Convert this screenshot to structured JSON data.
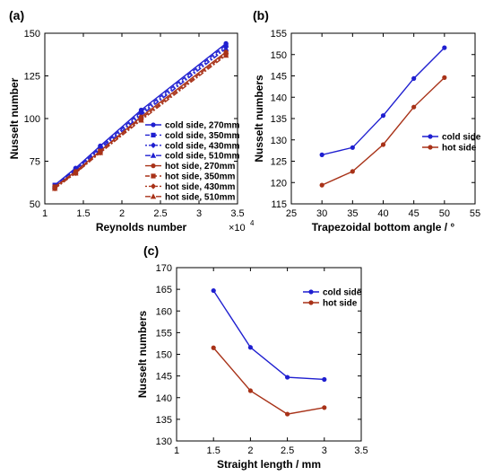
{
  "chart_data": [
    {
      "panel_label": "(a)",
      "type": "line",
      "xlabel": "Reynolds number",
      "ylabel": "Nusselt number",
      "x_multiplier": "×10",
      "x_multiplier_exp": "4",
      "xlim": [
        1,
        3.5
      ],
      "ylim": [
        50,
        150
      ],
      "xticks": [
        1,
        1.5,
        2,
        2.5,
        3,
        3.5
      ],
      "yticks": [
        50,
        75,
        100,
        125,
        150
      ],
      "legend_position": "bottom-right",
      "series": [
        {
          "name": "cold side, 270mm",
          "color": "#1f1fd0",
          "marker": "circle",
          "dash": "",
          "x": [
            1.13,
            1.4,
            1.72,
            2.25,
            3.35
          ],
          "y": [
            61,
            71,
            84,
            105,
            144
          ]
        },
        {
          "name": "cold side, 350mm",
          "color": "#1f1fd0",
          "marker": "square",
          "dash": "5,3",
          "x": [
            1.13,
            1.4,
            1.72,
            2.25,
            3.35
          ],
          "y": [
            61,
            70,
            83,
            104,
            143
          ]
        },
        {
          "name": "cold side, 430mm",
          "color": "#1f1fd0",
          "marker": "diamond",
          "dash": "2,2",
          "x": [
            1.13,
            1.4,
            1.72,
            2.25,
            3.35
          ],
          "y": [
            60,
            70,
            83,
            103,
            142
          ]
        },
        {
          "name": "cold side, 510mm",
          "color": "#1f1fd0",
          "marker": "triangle",
          "dash": "6,2,2,2",
          "x": [
            1.13,
            1.4,
            1.72,
            2.25,
            3.35
          ],
          "y": [
            60,
            69,
            82,
            102,
            141
          ]
        },
        {
          "name": "hot side, 270mm",
          "color": "#a83218",
          "marker": "circle",
          "dash": "",
          "x": [
            1.13,
            1.4,
            1.72,
            2.25,
            3.35
          ],
          "y": [
            60,
            69,
            81,
            101,
            139
          ]
        },
        {
          "name": "hot side, 350mm",
          "color": "#a83218",
          "marker": "square",
          "dash": "5,3",
          "x": [
            1.13,
            1.4,
            1.72,
            2.25,
            3.35
          ],
          "y": [
            60,
            68,
            81,
            100,
            138
          ]
        },
        {
          "name": "hot side, 430mm",
          "color": "#a83218",
          "marker": "diamond",
          "dash": "2,2",
          "x": [
            1.13,
            1.4,
            1.72,
            2.25,
            3.35
          ],
          "y": [
            59,
            68,
            80,
            100,
            138
          ]
        },
        {
          "name": "hot side, 510mm",
          "color": "#a83218",
          "marker": "triangle",
          "dash": "6,2,2,2",
          "x": [
            1.13,
            1.4,
            1.72,
            2.25,
            3.35
          ],
          "y": [
            59,
            68,
            80,
            99,
            137
          ]
        }
      ]
    },
    {
      "panel_label": "(b)",
      "type": "line",
      "xlabel": "Trapezoidal bottom angle / °",
      "ylabel": "Nusselt numbers",
      "xlim": [
        25,
        55
      ],
      "ylim": [
        115,
        155
      ],
      "xticks": [
        25,
        30,
        35,
        40,
        45,
        50,
        55
      ],
      "yticks": [
        115,
        120,
        125,
        130,
        135,
        140,
        145,
        150,
        155
      ],
      "legend_position": "right",
      "series": [
        {
          "name": "cold side",
          "color": "#1f1fd0",
          "marker": "circle",
          "x": [
            30,
            35,
            40,
            45,
            50
          ],
          "y": [
            126.5,
            128.2,
            135.7,
            144.4,
            151.6
          ]
        },
        {
          "name": "hot side",
          "color": "#a83218",
          "marker": "circle",
          "x": [
            30,
            35,
            40,
            45,
            50
          ],
          "y": [
            119.4,
            122.6,
            128.9,
            137.7,
            144.6
          ]
        }
      ]
    },
    {
      "panel_label": "(c)",
      "type": "line",
      "xlabel": "Straight length / mm",
      "ylabel": "Nusselt numbers",
      "xlim": [
        1,
        3.5
      ],
      "ylim": [
        130,
        170
      ],
      "xticks": [
        1,
        1.5,
        2,
        2.5,
        3,
        3.5
      ],
      "yticks": [
        130,
        135,
        140,
        145,
        150,
        155,
        160,
        165,
        170
      ],
      "legend_position": "top-right",
      "series": [
        {
          "name": "cold side",
          "color": "#1f1fd0",
          "marker": "circle",
          "x": [
            1.5,
            2,
            2.5,
            3
          ],
          "y": [
            164.7,
            151.6,
            144.7,
            144.2
          ]
        },
        {
          "name": "hot side",
          "color": "#a83218",
          "marker": "circle",
          "x": [
            1.5,
            2,
            2.5,
            3
          ],
          "y": [
            151.5,
            141.6,
            136.2,
            137.7
          ]
        }
      ]
    }
  ]
}
